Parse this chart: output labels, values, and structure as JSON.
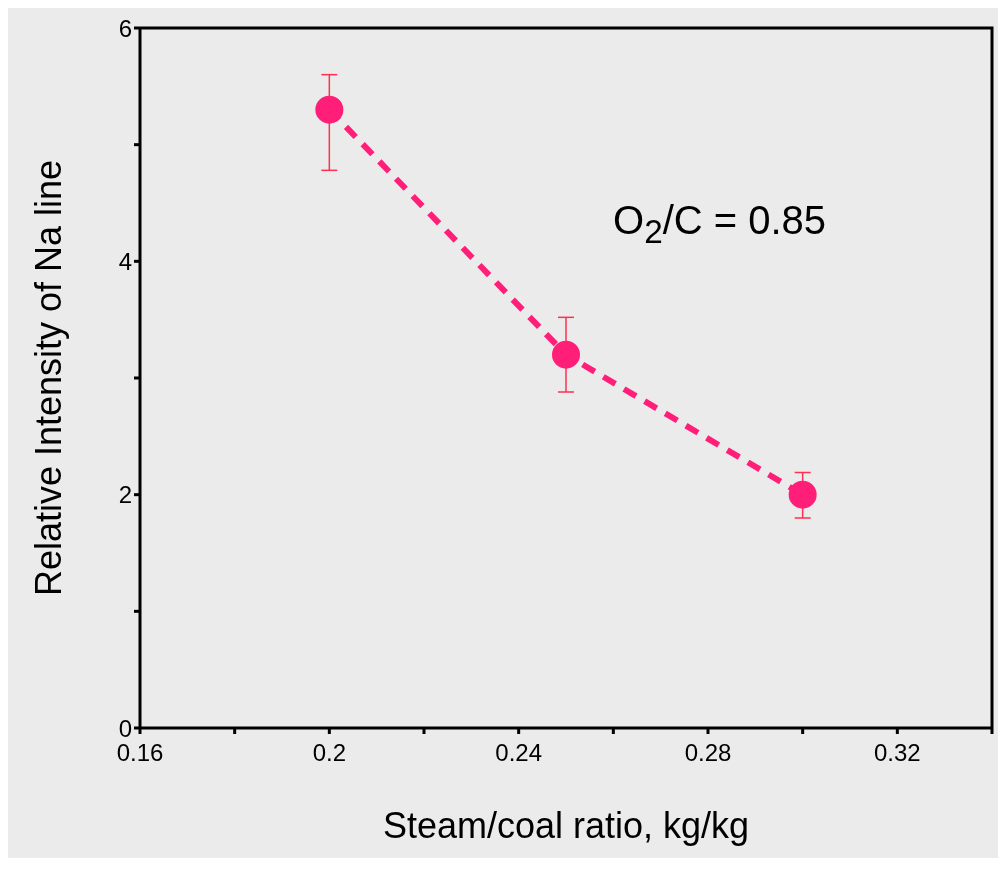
{
  "chart_data": {
    "type": "line",
    "xlabel": "Steam/coal ratio, kg/kg",
    "ylabel": "Relative Intensity of Na line",
    "x": [
      0.2,
      0.25,
      0.3
    ],
    "series": [
      {
        "color": "#ff1f78",
        "values": [
          5.3,
          3.2,
          2.0
        ],
        "errors": [
          [
            4.78,
            5.6
          ],
          [
            2.88,
            3.52
          ],
          [
            1.8,
            2.19
          ]
        ]
      }
    ],
    "marker": "circle",
    "line_style": "dashed",
    "xlim": [
      0.16,
      0.34
    ],
    "xticks": [
      0.16,
      {
        "value": 0.18,
        "label": null
      },
      0.2,
      {
        "value": 0.22,
        "label": null
      },
      0.24,
      {
        "value": 0.26,
        "label": null
      },
      0.28,
      {
        "value": 0.3,
        "label": null
      },
      0.32,
      {
        "value": 0.34,
        "label": null
      }
    ],
    "ylim": [
      0,
      6
    ],
    "yticks": [
      0,
      {
        "value": 1,
        "label": null
      },
      2,
      {
        "value": 3,
        "label": null
      },
      4,
      {
        "value": 5,
        "label": null
      },
      6
    ],
    "annotations": [
      "O$_{2}$/C = 0.85"
    ]
  }
}
